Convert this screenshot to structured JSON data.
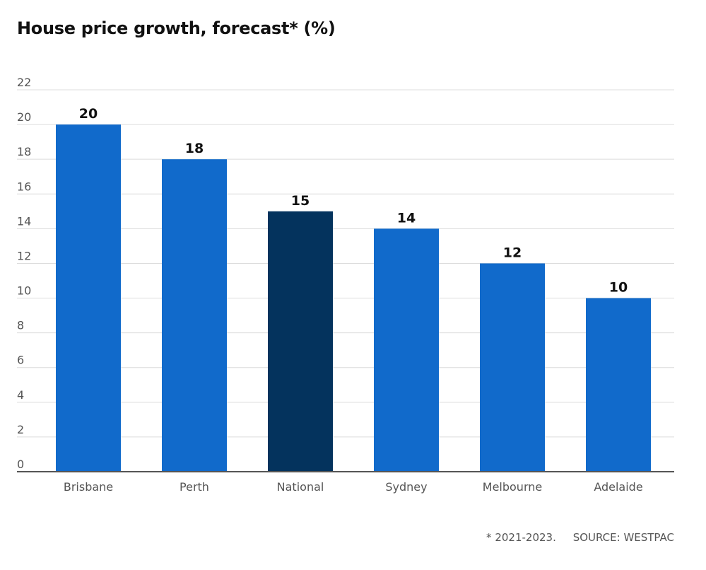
{
  "title": "House price growth, forecast* (%)",
  "footnote": {
    "note": "* 2021-2023.",
    "source": "SOURCE: WESTPAC"
  },
  "colors": {
    "bar": "#116acb",
    "highlight": "#04335d",
    "grid": "#dcdcdc",
    "axis": "#555555",
    "tick_text": "#555555",
    "value_text": "#111111"
  },
  "chart_data": {
    "type": "bar",
    "title": "House price growth, forecast* (%)",
    "categories": [
      "Brisbane",
      "Perth",
      "National",
      "Sydney",
      "Melbourne",
      "Adelaide"
    ],
    "values": [
      20,
      18,
      15,
      14,
      12,
      10
    ],
    "highlight": [
      "National"
    ],
    "ylim": [
      0,
      22
    ],
    "yticks": [
      0,
      2,
      4,
      6,
      8,
      10,
      12,
      14,
      16,
      18,
      20,
      22
    ],
    "grid": true,
    "data_labels": true,
    "xlabel": "",
    "ylabel": ""
  }
}
